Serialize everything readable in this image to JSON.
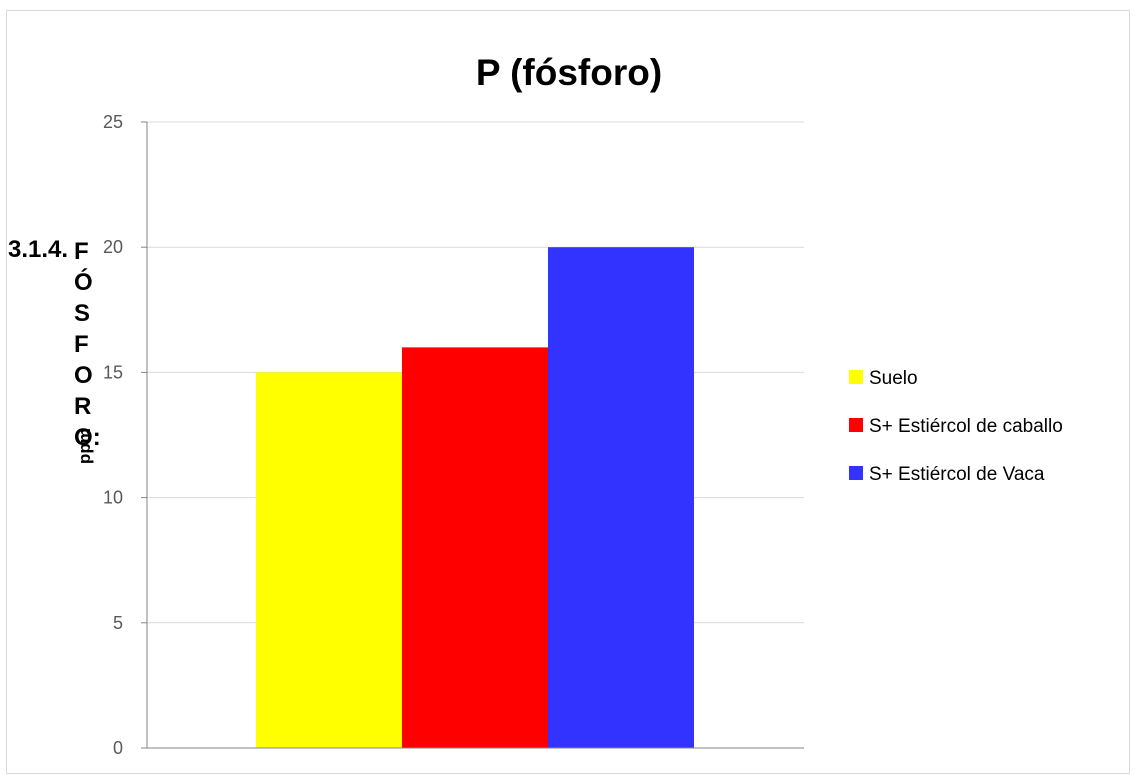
{
  "chart_data": {
    "type": "bar",
    "title": "P (fósforo)",
    "ylabel": "ppm",
    "xlabel": "",
    "ylim": [
      0,
      25
    ],
    "yticks": [
      0,
      5,
      10,
      15,
      20,
      25
    ],
    "grid": true,
    "legend_position": "right",
    "series": [
      {
        "name": "Suelo",
        "color": "#ffff00",
        "values": [
          15
        ]
      },
      {
        "name": "S+ Estiércol de caballo",
        "color": "#ff0000",
        "values": [
          16
        ]
      },
      {
        "name": "S+ Estiércol de Vaca",
        "color": "#3333ff",
        "values": [
          20
        ]
      }
    ]
  },
  "overlay_heading": {
    "number": "3.1.4.",
    "word": "FÓSFORO:"
  },
  "colors": {
    "gridline": "#d9d9d9",
    "axis": "#868686",
    "tick_text": "#595959"
  }
}
